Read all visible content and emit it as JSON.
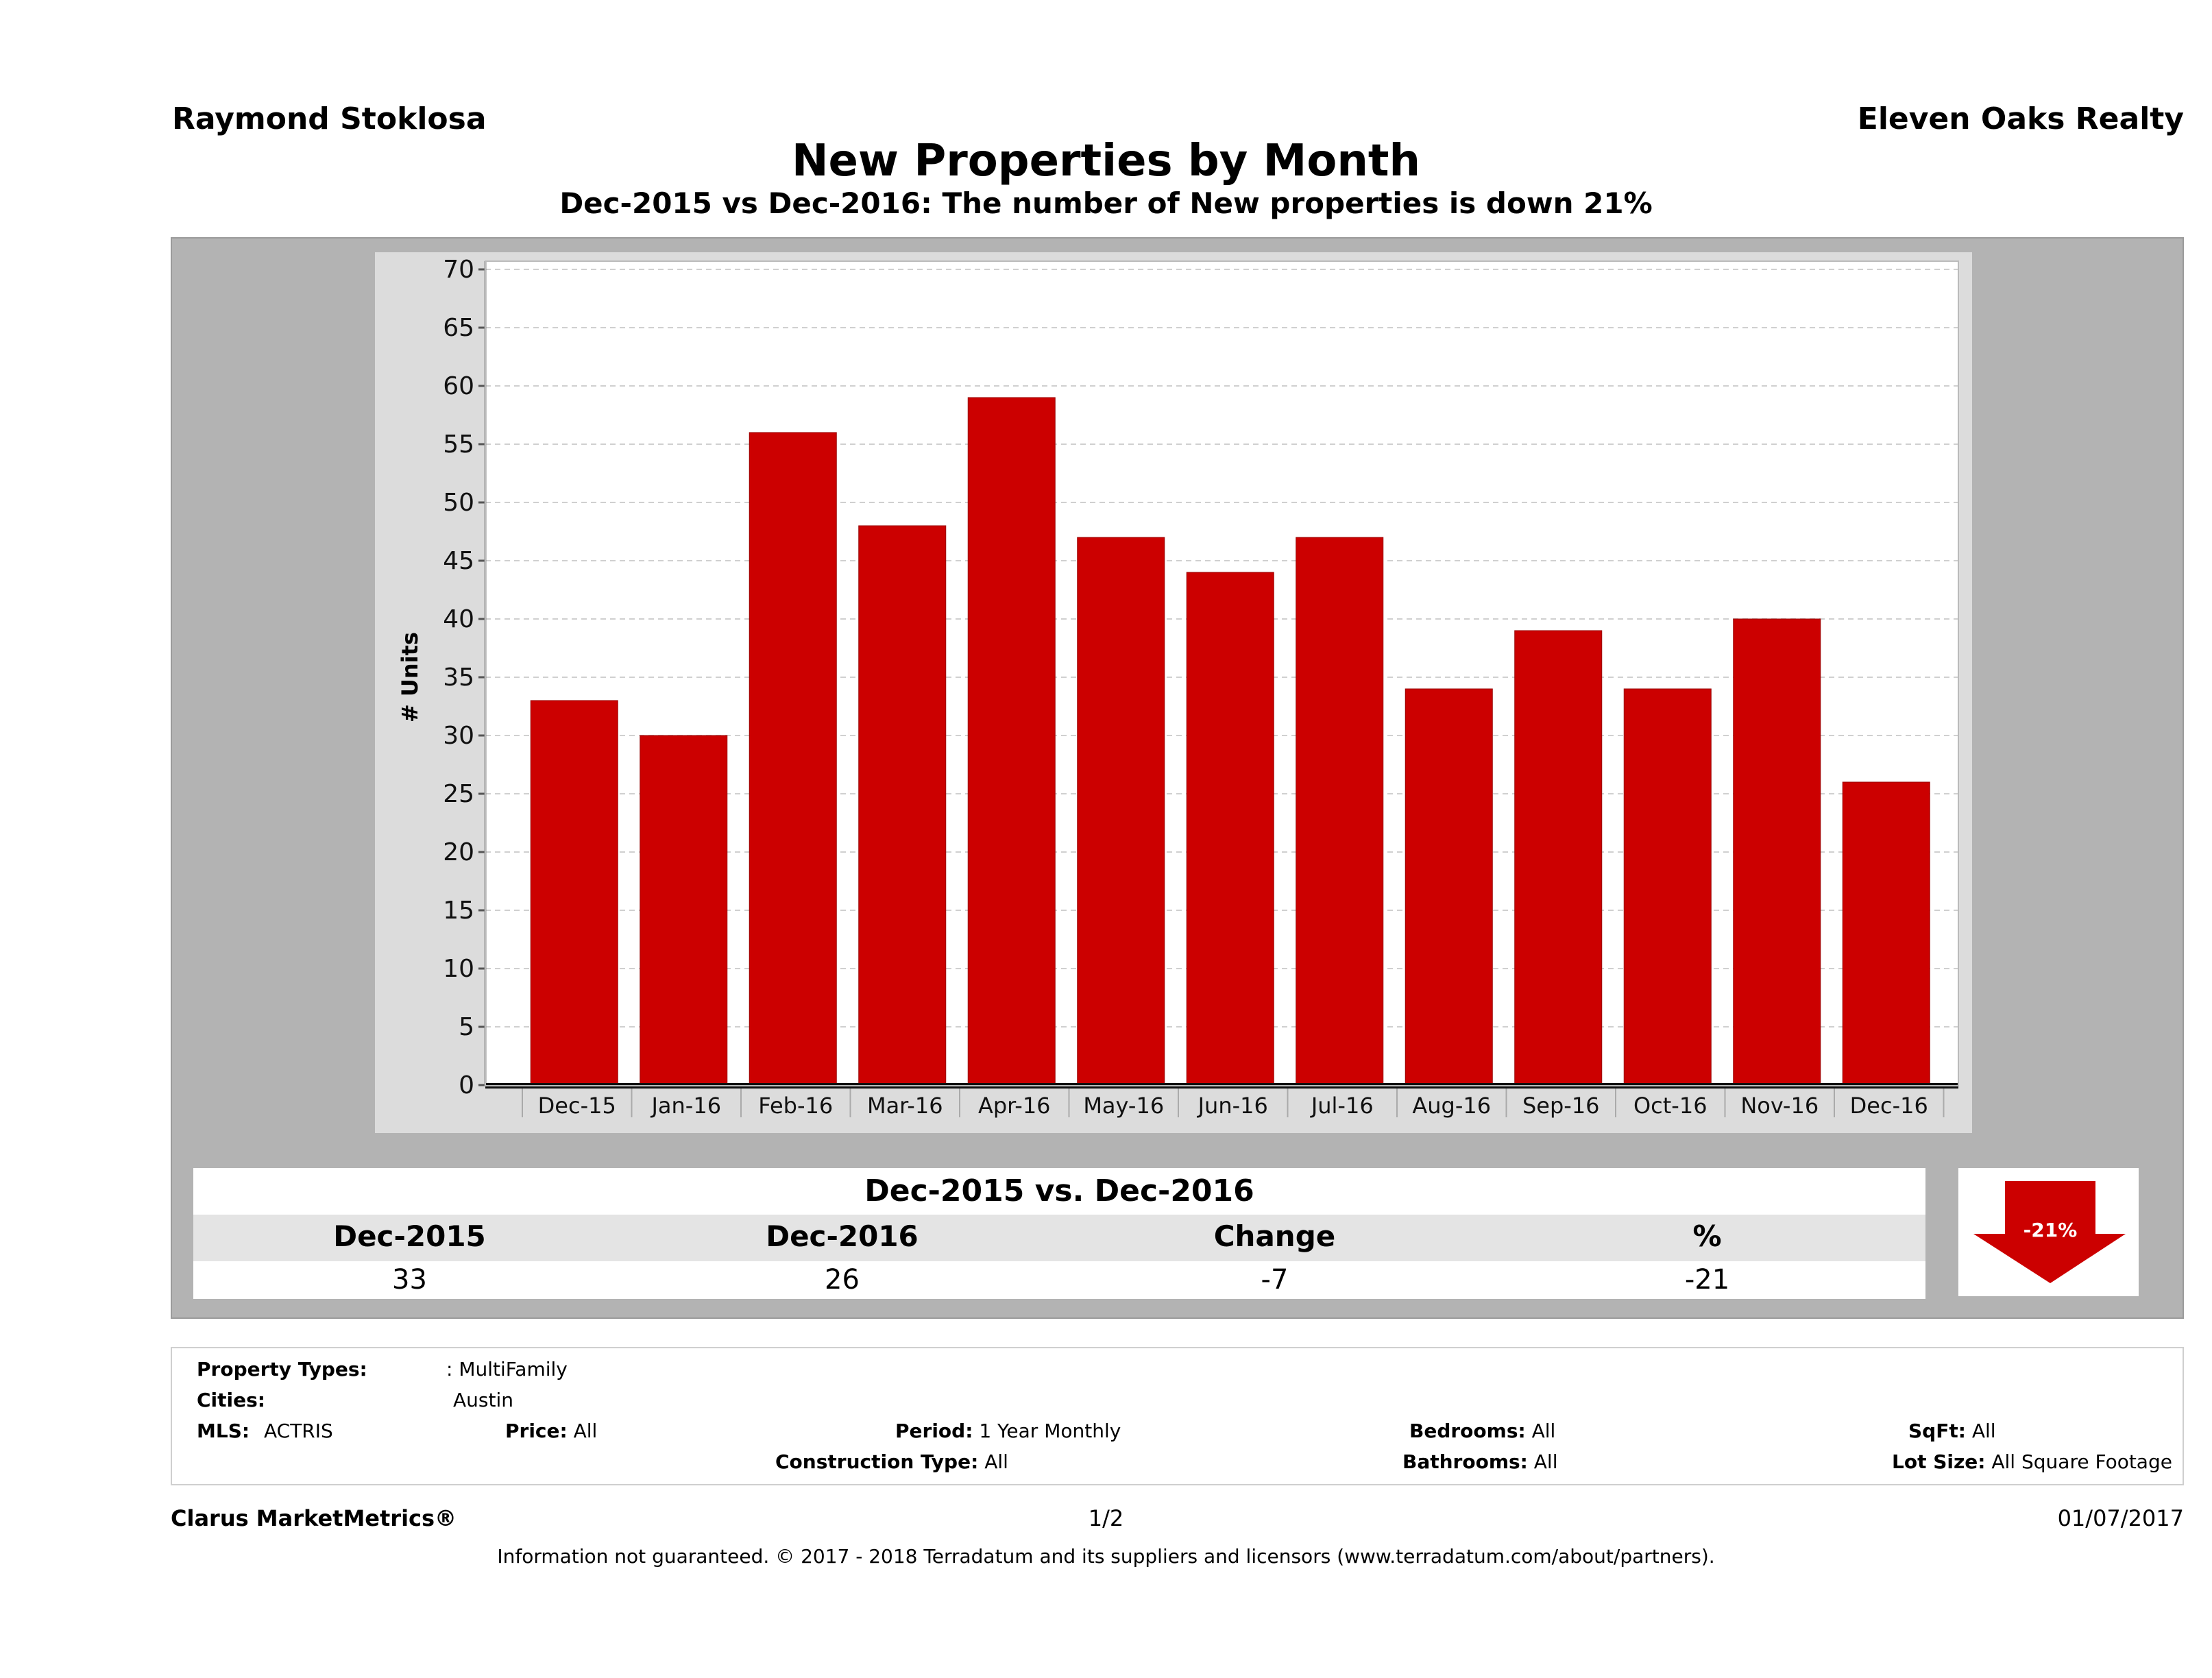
{
  "header": {
    "agent_name": "Raymond Stoklosa",
    "brokerage": "Eleven Oaks Realty",
    "title": "New Properties by Month",
    "subtitle": "Dec-2015 vs Dec-2016: The number of New  properties is down 21%"
  },
  "colors": {
    "bar": "#cc0000",
    "panel": "#b3b3b3",
    "chart_bg": "#dcdcdc",
    "arrow": "#cc0000"
  },
  "chart_data": {
    "type": "bar",
    "title": "New Properties by Month",
    "xlabel": "",
    "ylabel": "# Units",
    "ylim": [
      0,
      70
    ],
    "yticks": [
      0,
      5,
      10,
      15,
      20,
      25,
      30,
      35,
      40,
      45,
      50,
      55,
      60,
      65,
      70
    ],
    "grid": true,
    "legend": "none",
    "categories": [
      "Dec-15",
      "Jan-16",
      "Feb-16",
      "Mar-16",
      "Apr-16",
      "May-16",
      "Jun-16",
      "Jul-16",
      "Aug-16",
      "Sep-16",
      "Oct-16",
      "Nov-16",
      "Dec-16"
    ],
    "values": [
      33,
      30,
      56,
      48,
      59,
      47,
      44,
      47,
      34,
      39,
      34,
      40,
      26
    ]
  },
  "comparison": {
    "title": "Dec-2015 vs. Dec-2016",
    "headers": [
      "Dec-2015",
      "Dec-2016",
      "Change",
      "%"
    ],
    "values": [
      "33",
      "26",
      "-7",
      "-21"
    ],
    "badge": "-21%"
  },
  "filters": {
    "property_types_label": "Property Types:",
    "property_types_value": ": MultiFamily",
    "cities_label": "Cities:",
    "cities_value": "Austin",
    "mls_label": "MLS:",
    "mls_value": "ACTRIS",
    "price_label": "Price:",
    "price_value": "All",
    "period_label": "Period:",
    "period_value": "1 Year Monthly",
    "construction_label": "Construction Type:",
    "construction_value": "All",
    "bedrooms_label": "Bedrooms:",
    "bedrooms_value": "All",
    "bathrooms_label": "Bathrooms:",
    "bathrooms_value": "All",
    "sqft_label": "SqFt:",
    "sqft_value": "All",
    "lotsize_label": "Lot Size:",
    "lotsize_value": "All Square Footage"
  },
  "footer": {
    "brand": "Clarus MarketMetrics®",
    "page": "1/2",
    "date": "01/07/2017",
    "disclaimer": "Information not guaranteed. © 2017 - 2018 Terradatum and its suppliers and licensors (www.terradatum.com/about/partners)."
  }
}
